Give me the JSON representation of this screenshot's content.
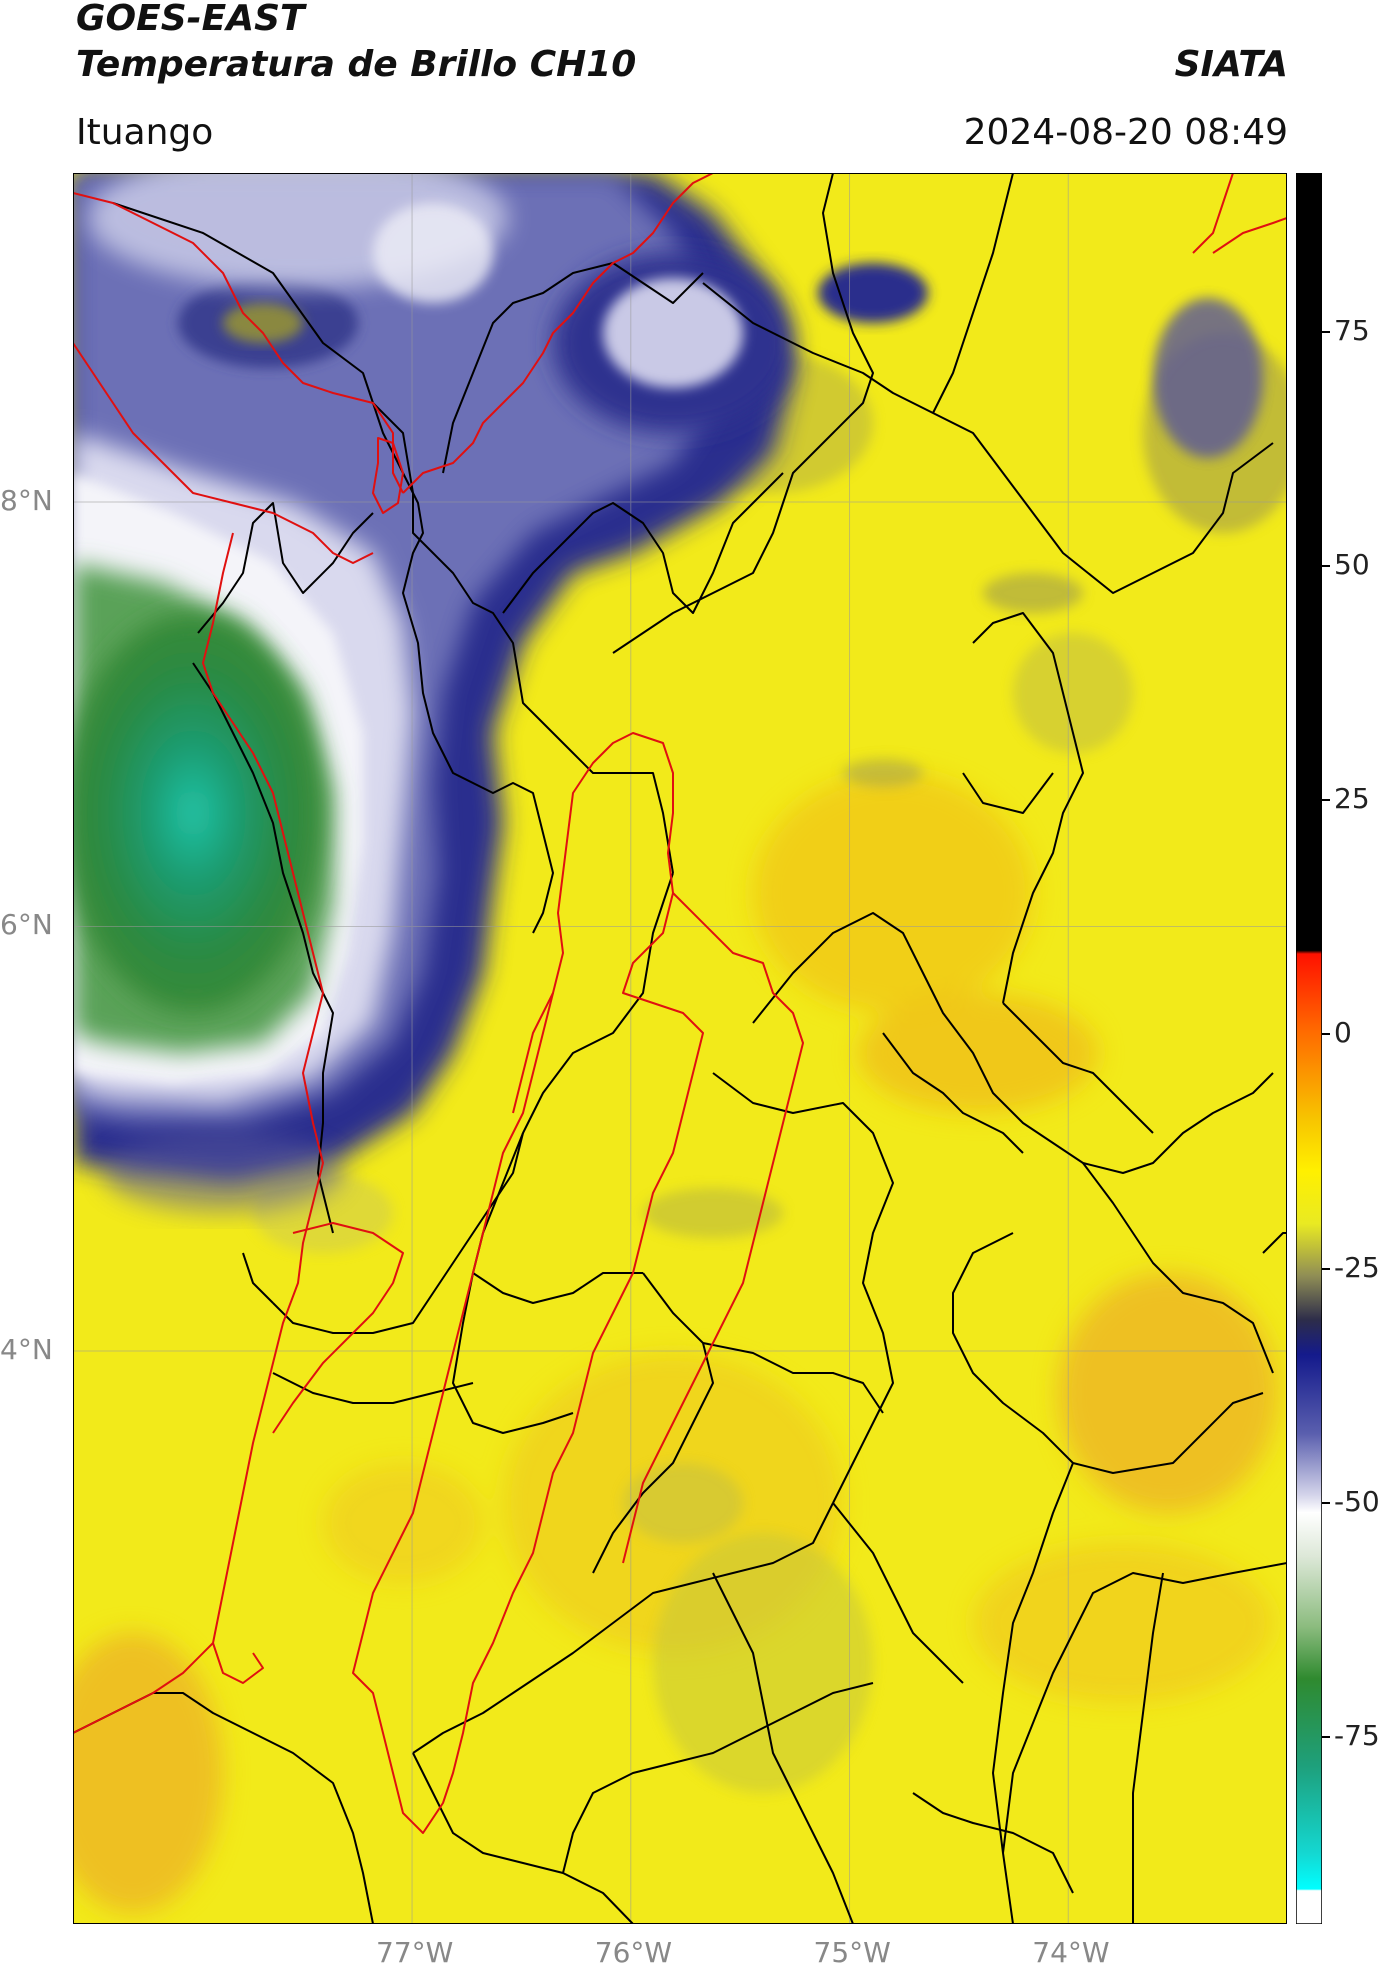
{
  "header": {
    "satellite": "GOES-EAST",
    "product": "Temperatura de Brillo CH10",
    "region": "Ituango",
    "agency": "SIATA",
    "timestamp": "2024-08-20 08:49"
  },
  "map": {
    "lat_labels": [
      "8°N",
      "6°N",
      "4°N"
    ],
    "lon_labels": [
      "77°W",
      "76°W",
      "75°W",
      "74°W"
    ],
    "lat_range": [
      1.3,
      9.55
    ],
    "lon_range": [
      -78.55,
      -73.0
    ],
    "border_color": "#000000",
    "basin_color": "#e01010",
    "gridline_color": "#9a9a9a"
  },
  "colorbar": {
    "ticks": [
      "75",
      "50",
      "25",
      "0",
      "-25",
      "-50",
      "-75"
    ],
    "tick_values": [
      75,
      50,
      25,
      0,
      -25,
      -50,
      -75
    ],
    "range": [
      -95,
      92
    ],
    "unit": ""
  }
}
